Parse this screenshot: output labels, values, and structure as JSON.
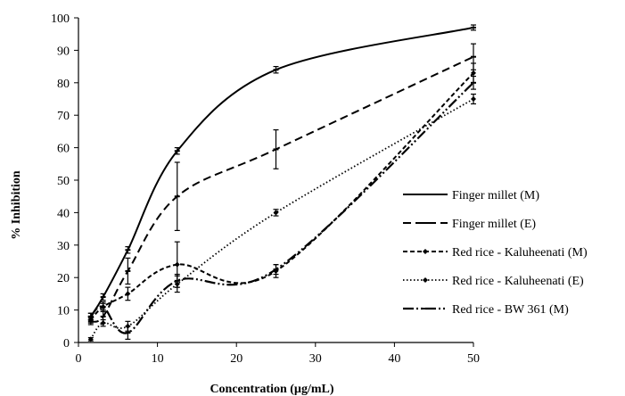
{
  "chart_data": {
    "type": "line",
    "xlabel": "Concentration (µg/mL)",
    "ylabel": "% Inhibition",
    "xlim": [
      0,
      50
    ],
    "ylim": [
      0,
      100
    ],
    "x_ticks": [
      0,
      10,
      20,
      30,
      40,
      50
    ],
    "y_ticks": [
      0,
      10,
      20,
      30,
      40,
      50,
      60,
      70,
      80,
      90,
      100
    ],
    "grid": false,
    "legend_position": "bottom-right",
    "series": [
      {
        "name": "Finger millet (M)",
        "line_style": "solid",
        "marker": "dash",
        "x": [
          1.56,
          3.12,
          6.25,
          12.5,
          25,
          50
        ],
        "y": [
          8,
          14,
          28.5,
          59,
          84,
          97
        ],
        "error": [
          1,
          1,
          1,
          1,
          1,
          0.8
        ]
      },
      {
        "name": "Finger millet (E)",
        "line_style": "dashed",
        "marker": "dash",
        "x": [
          1.56,
          3.12,
          6.25,
          12.5,
          25,
          50
        ],
        "y": [
          6.5,
          8,
          22,
          45,
          59.5,
          88
        ],
        "error": [
          1,
          2,
          4,
          10.5,
          6,
          4
        ]
      },
      {
        "name": "Red rice - Kaluheenati (M)",
        "line_style": "short-dashed",
        "marker": "diamond",
        "x": [
          1.56,
          3.12,
          6.25,
          12.5,
          25,
          50
        ],
        "y": [
          7,
          11,
          15,
          24,
          22,
          83
        ],
        "error": [
          1,
          1.5,
          2,
          7,
          2,
          3
        ]
      },
      {
        "name": "Red rice - Kaluheenati (E)",
        "line_style": "dotted",
        "marker": "diamond",
        "x": [
          1.56,
          3.12,
          6.25,
          12.5,
          25,
          50
        ],
        "y": [
          1,
          6,
          5,
          18,
          40,
          75
        ],
        "error": [
          0.5,
          1,
          1.5,
          2.5,
          1,
          1.5
        ]
      },
      {
        "name": "Red rice - BW 361 (M)",
        "line_style": "dash-dot-dot",
        "marker": "dash",
        "x": [
          1.56,
          3.12,
          6.25,
          12.5,
          25,
          50
        ],
        "y": [
          8,
          11,
          3,
          19,
          22.5,
          80
        ],
        "error": [
          1,
          1,
          2,
          2,
          1.5,
          2
        ]
      }
    ]
  }
}
